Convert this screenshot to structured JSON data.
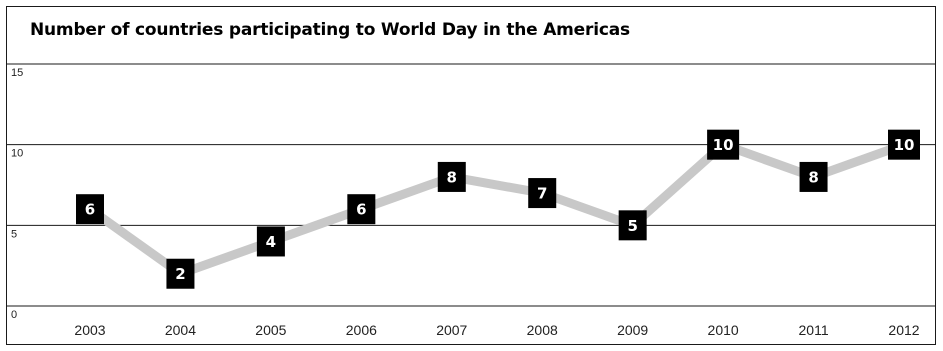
{
  "chart_data": {
    "type": "line",
    "title": "Number of countries participating to World Day in the Americas",
    "categories": [
      "2003",
      "2004",
      "2005",
      "2006",
      "2007",
      "2008",
      "2009",
      "2010",
      "2011",
      "2012"
    ],
    "series": [
      {
        "values": [
          6,
          2,
          4,
          6,
          8,
          7,
          5,
          10,
          8,
          10
        ]
      }
    ],
    "yticks": [
      0,
      5,
      10,
      15
    ],
    "ylim": [
      0,
      15
    ],
    "grid": true,
    "line_color": "#c8c8c8",
    "label_box_color": "#000000",
    "label_text_color": "#ffffff"
  }
}
